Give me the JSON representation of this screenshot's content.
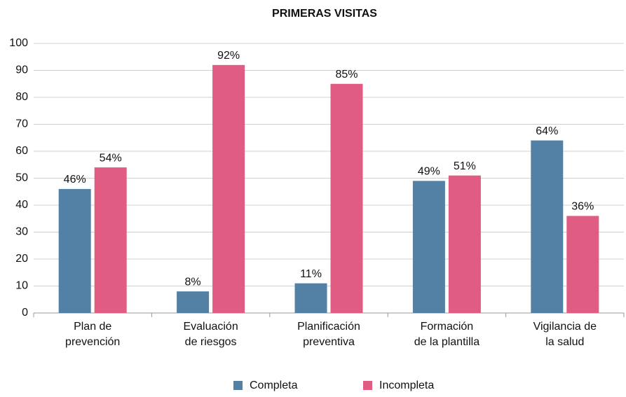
{
  "chart_data": {
    "type": "bar",
    "title": "PRIMERAS VISITAS",
    "categories": [
      "Plan de\nprevención",
      "Evaluación\nde riesgos",
      "Planificación\npreventiva",
      "Formación\nde la plantilla",
      "Vigilancia de\nla salud"
    ],
    "series": [
      {
        "name": "Completa",
        "color": "#5381a6",
        "values": [
          46,
          8,
          11,
          49,
          64
        ],
        "value_labels": [
          "46%",
          "8%",
          "11%",
          "49%",
          "64%"
        ]
      },
      {
        "name": "Incompleta",
        "color": "#e05c82",
        "values": [
          54,
          92,
          85,
          51,
          36
        ],
        "value_labels": [
          "54%",
          "92%",
          "85%",
          "51%",
          "36%"
        ]
      }
    ],
    "ylim": [
      0,
      100
    ],
    "yticks": [
      0,
      10,
      20,
      30,
      40,
      50,
      60,
      70,
      80,
      90,
      100
    ],
    "grid": true,
    "legend": "bottom"
  }
}
